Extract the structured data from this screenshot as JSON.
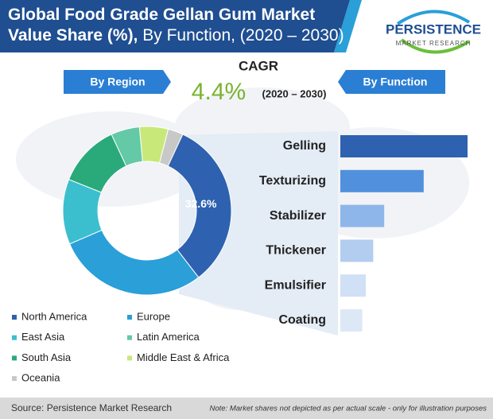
{
  "title": {
    "bold": "Global Food Grade Gellan Gum Market Value Share (%),",
    "rest": "By Function, (2020 – 2030)"
  },
  "logo": {
    "name": "PERSISTENCE",
    "tagline": "MARKET RESEARCH"
  },
  "cagr": {
    "label": "CAGR",
    "value": 4.4,
    "value_label": "4.4%",
    "period": "(2020 – 2030)"
  },
  "buttons": [
    "By Region",
    "By Function"
  ],
  "chart_data": [
    {
      "type": "pie",
      "categories": [
        "North America",
        "Europe",
        "East Asia",
        "South Asia",
        "Latin America",
        "Middle East & Africa",
        "Oceania"
      ],
      "values": [
        32.6,
        29,
        12.5,
        12,
        5.5,
        5.5,
        2.9
      ],
      "value_labels": [
        "32.6%",
        null,
        null,
        null,
        null,
        null,
        null
      ],
      "colors": [
        "#2e62b0",
        "#2a9fd8",
        "#3bbfcf",
        "#2aaa7a",
        "#63c9a6",
        "#c8e87a",
        "#c8c8c8"
      ],
      "legend_order": [
        0,
        1,
        2,
        4,
        3,
        5,
        6
      ]
    },
    {
      "type": "hbar",
      "categories": [
        "Gelling",
        "Texturizing",
        "Stabilizer",
        "Thickener",
        "Emulsifier",
        "Coating"
      ],
      "values": [
        29,
        19,
        10,
        7.5,
        5.8,
        5
      ],
      "colors": [
        "#2e62b0",
        "#5190dc",
        "#8fb6ea",
        "#b3cdf0",
        "#d0e0f5",
        "#dde8f7"
      ]
    }
  ],
  "footer": {
    "source": "Source: Persistence Market Research",
    "note": "Note: Market shares not depicted as per actual scale - only for illustration purposes"
  }
}
